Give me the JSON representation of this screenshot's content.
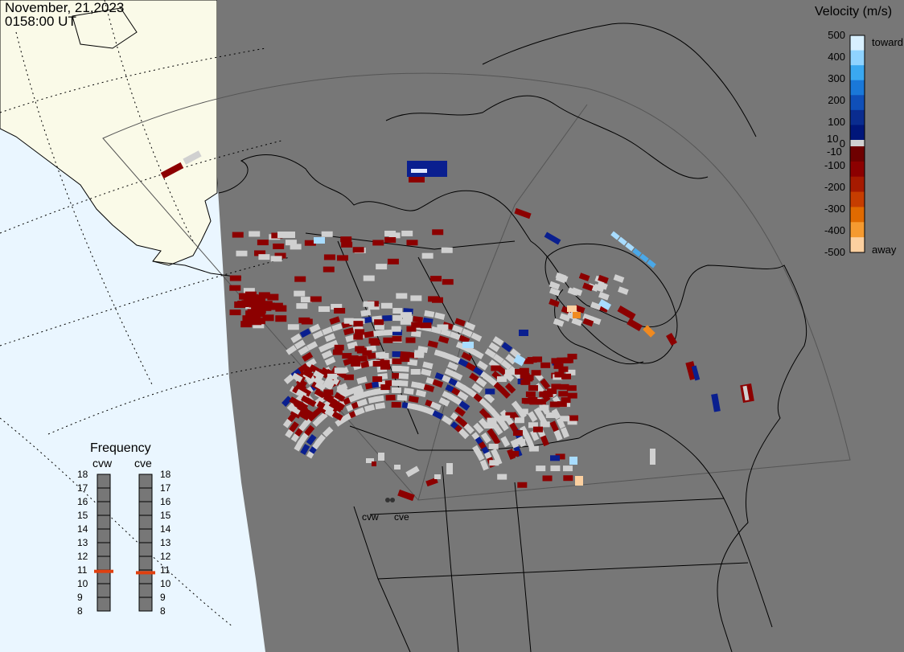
{
  "timestamp": {
    "date": "November, 21,2023",
    "time": "0158:00 UT"
  },
  "velocity_scale": {
    "title": "Velocity (m/s)",
    "ticks": [
      "500",
      "400",
      "300",
      "200",
      "100",
      "0",
      "-100",
      "-200",
      "-300",
      "-400",
      "-500"
    ],
    "side_labels": {
      "toward": "toward",
      "away": "away",
      "plus10": "10",
      "minus10": "-10"
    },
    "colors_toward": [
      "#d8f0ff",
      "#8fd3ff",
      "#3aa8f0",
      "#1a78d8",
      "#0f4fb8",
      "#0a2c8f",
      "#00167a"
    ],
    "colors_away": [
      "#6e0000",
      "#8c0000",
      "#a61a00",
      "#c63d00",
      "#e06a00",
      "#f59a30",
      "#fcd0a0"
    ],
    "ground_scatter_color": "#d0d0d0"
  },
  "frequency_panel": {
    "title": "Frequency",
    "radars": [
      {
        "name": "cvw",
        "selected_mhz": 10.9
      },
      {
        "name": "cve",
        "selected_mhz": 10.8
      }
    ],
    "ticks": [
      "18",
      "17",
      "16",
      "15",
      "14",
      "13",
      "12",
      "11",
      "10",
      "9",
      "8"
    ],
    "marker_color": "#e04010"
  },
  "sites": [
    {
      "name": "cvw",
      "label": "cvw"
    },
    {
      "name": "cve",
      "label": "cve"
    }
  ],
  "colors": {
    "terminator_gray": "#777777",
    "land_day": "#fafae8",
    "ocean_day": "#eaf6ff"
  }
}
